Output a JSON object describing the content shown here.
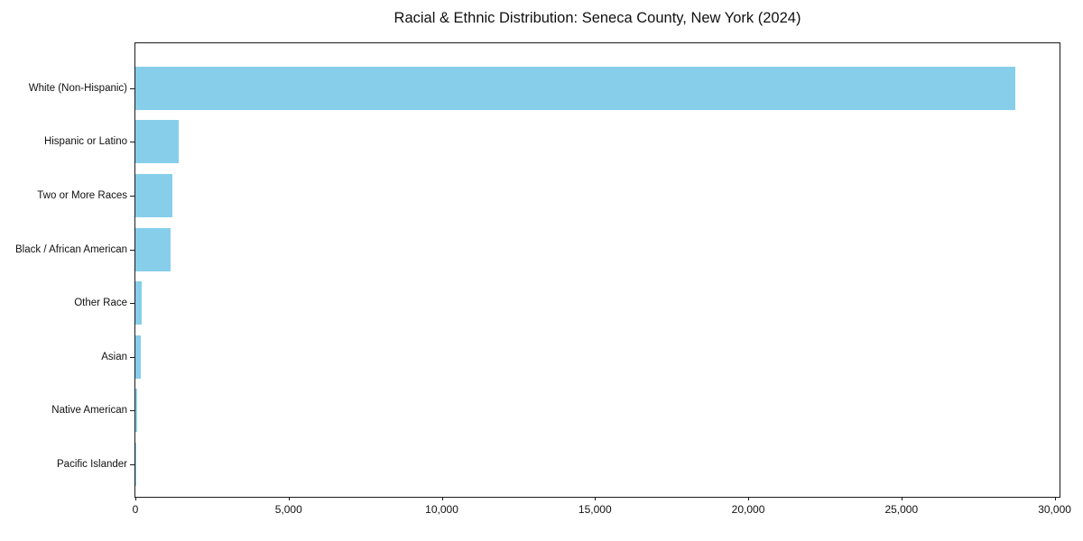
{
  "page": {
    "background_color": "#ffffff",
    "text_color": "#111111"
  },
  "chart_data": {
    "type": "bar",
    "orientation": "horizontal",
    "title": "Racial & Ethnic Distribution: Seneca County, New York (2024)",
    "xlabel": "",
    "ylabel": "",
    "categories": [
      "White (Non-Hispanic)",
      "Hispanic or Latino",
      "Two or More Races",
      "Black / African American",
      "Other Race",
      "Asian",
      "Native American",
      "Pacific Islander"
    ],
    "values": [
      28720,
      1400,
      1210,
      1140,
      210,
      180,
      60,
      10
    ],
    "xlim": [
      0,
      30160
    ],
    "x_ticks": [
      {
        "value": 0,
        "label": "0"
      },
      {
        "value": 5000,
        "label": "5,000"
      },
      {
        "value": 10000,
        "label": "10,000"
      },
      {
        "value": 15000,
        "label": "15,000"
      },
      {
        "value": 20000,
        "label": "20,000"
      },
      {
        "value": 25000,
        "label": "25,000"
      },
      {
        "value": 30000,
        "label": "30,000"
      }
    ],
    "bar_color": "#87CEEB",
    "axis_color": "#1a1a1a",
    "grid": false,
    "legend": null
  }
}
